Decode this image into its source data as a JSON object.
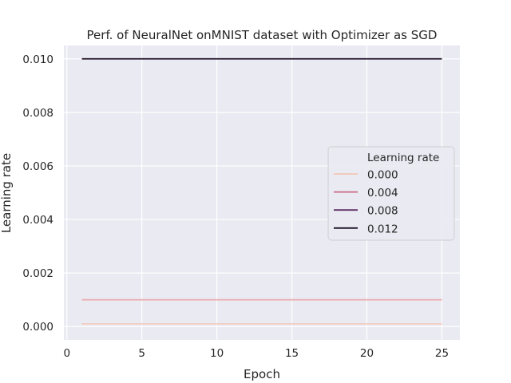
{
  "chart_data": {
    "type": "line",
    "title": "Perf. of NeuralNet onMNIST dataset with Optimizer as SGD",
    "xlabel": "Epoch",
    "ylabel": "Learning rate",
    "xlim": [
      -0.2,
      26.2
    ],
    "ylim": [
      -0.0005,
      0.0105
    ],
    "xticks": [
      0,
      5,
      10,
      15,
      20,
      25
    ],
    "xtick_labels": [
      "0",
      "5",
      "10",
      "15",
      "20",
      "25"
    ],
    "yticks": [
      0.0,
      0.002,
      0.004,
      0.006,
      0.008,
      0.01
    ],
    "ytick_labels": [
      "0.000",
      "0.002",
      "0.004",
      "0.006",
      "0.008",
      "0.010"
    ],
    "grid": true,
    "background": "#eaeaf2",
    "legend": {
      "title": "Learning rate",
      "placement": "center-right",
      "entries": [
        {
          "label": "0.000",
          "color": "#f1c7b2"
        },
        {
          "label": "0.004",
          "color": "#c86c84"
        },
        {
          "label": "0.008",
          "color": "#5c2e64"
        },
        {
          "label": "0.012",
          "color": "#1f1428"
        }
      ]
    },
    "series": [
      {
        "x": [
          1,
          25
        ],
        "y": [
          0.0001,
          0.0001
        ],
        "color": "#f4ccc0"
      },
      {
        "x": [
          1,
          25
        ],
        "y": [
          0.001,
          0.001
        ],
        "color": "#ebb0b4"
      },
      {
        "x": [
          1,
          25
        ],
        "y": [
          0.01,
          0.01
        ],
        "color": "#1f1428"
      }
    ]
  }
}
